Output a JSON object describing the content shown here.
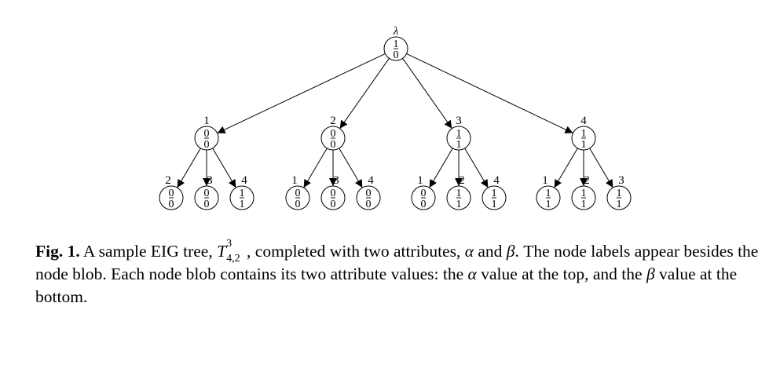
{
  "tree": {
    "root": {
      "label": "λ",
      "alpha": "1",
      "beta": "0"
    },
    "level1": [
      {
        "label": "1",
        "alpha": "0",
        "beta": "0",
        "children": [
          {
            "label": "2",
            "alpha": "0",
            "beta": "0"
          },
          {
            "label": "3",
            "alpha": "0",
            "beta": "0"
          },
          {
            "label": "4",
            "alpha": "1",
            "beta": "1"
          }
        ]
      },
      {
        "label": "2",
        "alpha": "0",
        "beta": "0",
        "children": [
          {
            "label": "1",
            "alpha": "0",
            "beta": "0"
          },
          {
            "label": "3",
            "alpha": "0",
            "beta": "0"
          },
          {
            "label": "4",
            "alpha": "0",
            "beta": "0"
          }
        ]
      },
      {
        "label": "3",
        "alpha": "1",
        "beta": "1",
        "children": [
          {
            "label": "1",
            "alpha": "0",
            "beta": "0"
          },
          {
            "label": "2",
            "alpha": "1",
            "beta": "1"
          },
          {
            "label": "4",
            "alpha": "1",
            "beta": "1"
          }
        ]
      },
      {
        "label": "4",
        "alpha": "1",
        "beta": "1",
        "children": [
          {
            "label": "1",
            "alpha": "1",
            "beta": "1"
          },
          {
            "label": "2",
            "alpha": "1",
            "beta": "1"
          },
          {
            "label": "3",
            "alpha": "1",
            "beta": "1"
          }
        ]
      }
    ]
  },
  "caption": {
    "fig_label": "Fig. 1.",
    "text_before": " A sample EIG tree, ",
    "tree_symbol": "T",
    "tree_sup": "3",
    "tree_sub": "4,2",
    "text_mid1": ", completed with two attributes, ",
    "alpha_symbol": "α",
    "text_and": " and ",
    "beta_symbol": "β",
    "text_mid2": ". The node labels appear besides the node blob. Each node blob contains its two attribute values: the ",
    "alpha_symbol_2": "α",
    "text_mid3": " value at the top, and the ",
    "beta_symbol_2": "β",
    "text_end": " value at the bottom."
  }
}
